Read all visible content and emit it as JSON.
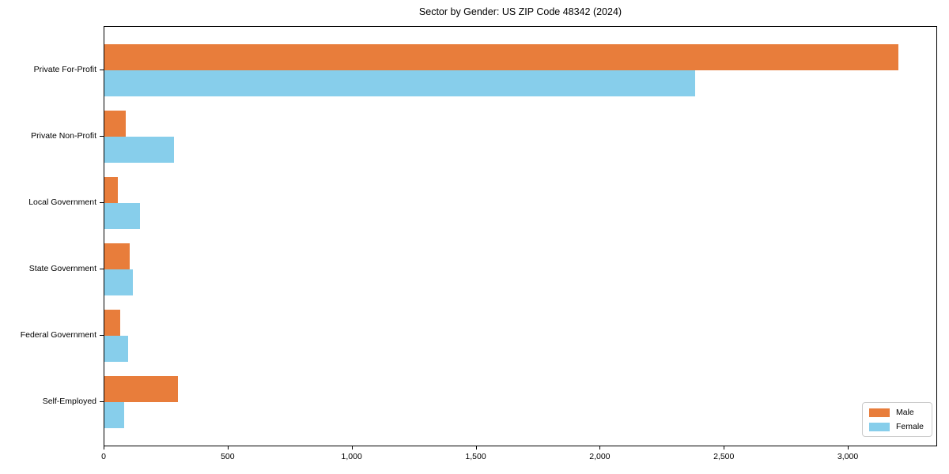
{
  "chart_data": {
    "type": "bar",
    "orientation": "horizontal",
    "title": "Sector by Gender: US ZIP Code 48342 (2024)",
    "categories": [
      "Private For-Profit",
      "Private Non-Profit",
      "Local Government",
      "State Government",
      "Federal Government",
      "Self-Employed"
    ],
    "series": [
      {
        "name": "Male",
        "color": "#e87d3b",
        "values": [
          3200,
          85,
          55,
          102,
          63,
          295
        ]
      },
      {
        "name": "Female",
        "color": "#87ceeb",
        "values": [
          2380,
          280,
          143,
          115,
          95,
          80
        ]
      }
    ],
    "xlabel": "",
    "ylabel": "",
    "xlim": [
      0,
      3360
    ],
    "xticks": [
      0,
      500,
      1000,
      1500,
      2000,
      2500,
      3000
    ],
    "xtick_labels": [
      "0",
      "500",
      "1,000",
      "1,500",
      "2,000",
      "2,500",
      "3,000"
    ],
    "grid": false,
    "legend_position": "lower right"
  },
  "legend": {
    "items": [
      {
        "label": "Male",
        "color": "#e87d3b"
      },
      {
        "label": "Female",
        "color": "#87ceeb"
      }
    ]
  }
}
